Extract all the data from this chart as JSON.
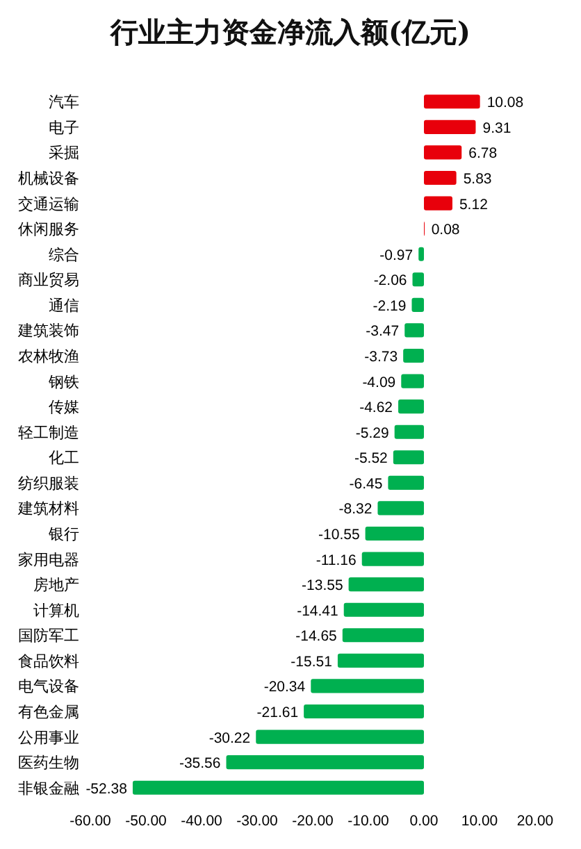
{
  "chart_data": {
    "type": "bar",
    "orientation": "horizontal",
    "title": "行业主力资金净流入额(亿元)",
    "categories": [
      "汽车",
      "电子",
      "采掘",
      "机械设备",
      "交通运输",
      "休闲服务",
      "综合",
      "商业贸易",
      "通信",
      "建筑装饰",
      "农林牧渔",
      "钢铁",
      "传媒",
      "轻工制造",
      "化工",
      "纺织服装",
      "建筑材料",
      "银行",
      "家用电器",
      "房地产",
      "计算机",
      "国防军工",
      "食品饮料",
      "电气设备",
      "有色金属",
      "公用事业",
      "医药生物",
      "非银金融"
    ],
    "values": [
      10.08,
      9.31,
      6.78,
      5.83,
      5.12,
      0.08,
      -0.97,
      -2.06,
      -2.19,
      -3.47,
      -3.73,
      -4.09,
      -4.62,
      -5.29,
      -5.52,
      -6.45,
      -8.32,
      -10.55,
      -11.16,
      -13.55,
      -14.41,
      -14.65,
      -15.51,
      -20.34,
      -21.61,
      -30.22,
      -35.56,
      -52.38
    ],
    "colors": [
      "#e8000b",
      "#e8000b",
      "#e8000b",
      "#e8000b",
      "#e8000b",
      "#e8000b",
      "#00b050",
      "#00b050",
      "#00b050",
      "#00b050",
      "#00b050",
      "#00b050",
      "#00b050",
      "#00b050",
      "#00b050",
      "#00b050",
      "#00b050",
      "#00b050",
      "#00b050",
      "#00b050",
      "#00b050",
      "#00b050",
      "#00b050",
      "#00b050",
      "#00b050",
      "#00b050",
      "#00b050",
      "#00b050"
    ],
    "data_labels": true,
    "xlim": [
      -60,
      20
    ],
    "xticks": [
      {
        "value": -60,
        "label": "-60.00"
      },
      {
        "value": -50,
        "label": "-50.00"
      },
      {
        "value": -40,
        "label": "-40.00"
      },
      {
        "value": -30,
        "label": "-30.00"
      },
      {
        "value": -20,
        "label": "-20.00"
      },
      {
        "value": -10,
        "label": "-10.00"
      },
      {
        "value": 0,
        "label": "0.00"
      },
      {
        "value": 10,
        "label": "10.00"
      },
      {
        "value": 20,
        "label": "20.00"
      }
    ],
    "grid": false
  }
}
